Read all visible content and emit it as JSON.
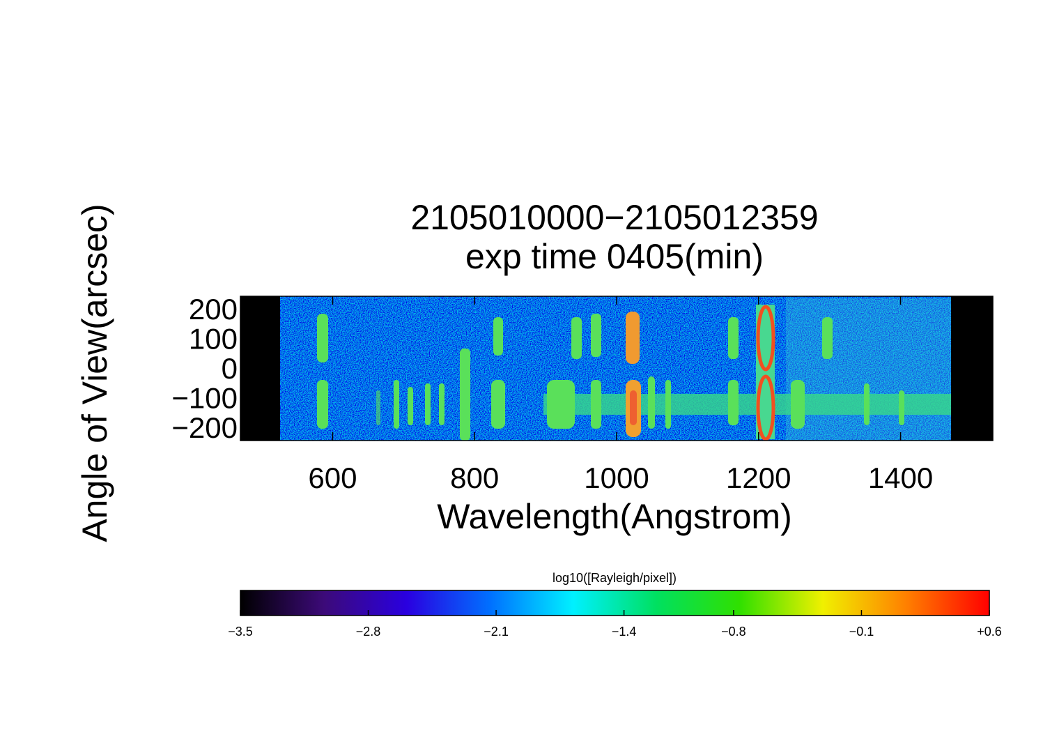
{
  "chart_data": {
    "type": "image",
    "title": "2105010000−2105012359",
    "subtitle": "exp time 0405(min)",
    "x_label": "Wavelength(Angstrom)",
    "y_label": "Angle of View(arcsec)",
    "xlim": [
      470,
      1530
    ],
    "xticks": [
      600,
      800,
      1000,
      1200,
      1400
    ],
    "ylim": [
      -235,
      252
    ],
    "yticks": [
      {
        "value": -200,
        "label": "−200"
      },
      {
        "value": -100,
        "label": "−100"
      },
      0,
      100,
      200
    ],
    "colorbar": {
      "label": "log10([Rayleigh/pixel])",
      "clim": [
        -3.5,
        0.6
      ],
      "ticks": [
        {
          "value": -3.5,
          "label": "−3.5"
        },
        {
          "value": -2.8,
          "label": "−2.8"
        },
        {
          "value": -2.1,
          "label": "−2.1"
        },
        {
          "value": -1.4,
          "label": "−1.4"
        },
        {
          "value": -0.8,
          "label": "−0.8"
        },
        {
          "value": -0.1,
          "label": "−0.1"
        },
        {
          "value": 0.6,
          "label": "+0.6"
        }
      ],
      "colormap": [
        "#000000",
        "#3c0a78",
        "#2a00e0",
        "#0070ff",
        "#00f0ff",
        "#00e060",
        "#30e000",
        "#f0f000",
        "#ff8000",
        "#ff0000"
      ]
    }
  }
}
